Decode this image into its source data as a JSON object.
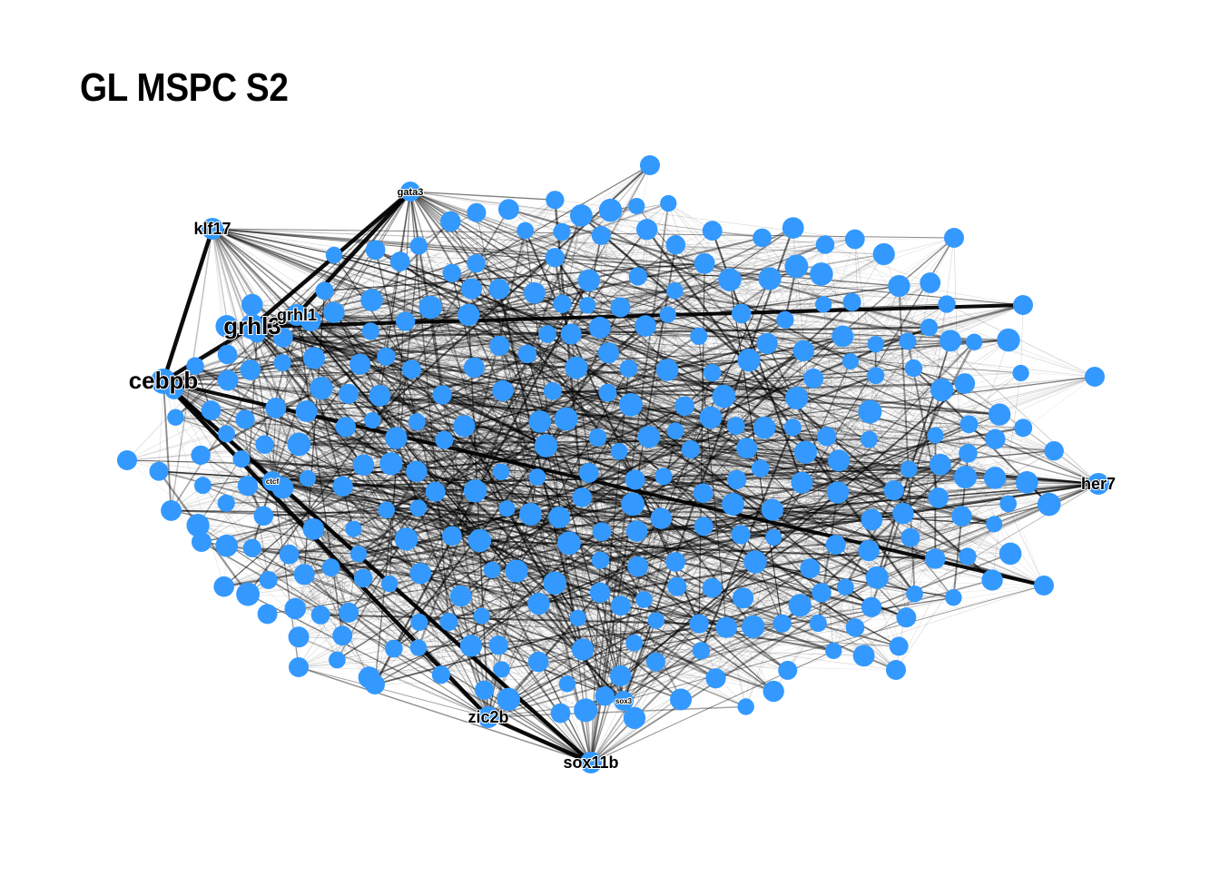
{
  "title": "GL MSPC S2",
  "colors": {
    "node": "#3399ff",
    "edge": "#000000",
    "background": "#ffffff"
  },
  "network": {
    "labeled_nodes": [
      {
        "id": "cebpb",
        "label": "cebpb",
        "size": "large"
      },
      {
        "id": "grhl3",
        "label": "grhl3",
        "size": "large"
      },
      {
        "id": "zic2b",
        "label": "zic2b",
        "size": "medium"
      },
      {
        "id": "sox11b",
        "label": "sox11b",
        "size": "medium"
      },
      {
        "id": "klf17",
        "label": "klf17",
        "size": "medium"
      },
      {
        "id": "grhl1",
        "label": "grhl1",
        "size": "medium"
      },
      {
        "id": "her7",
        "label": "her7",
        "size": "medium"
      },
      {
        "id": "gata3",
        "label": "gata3",
        "size": "small"
      },
      {
        "id": "ctcf",
        "label": "ctcf",
        "size": "tiny"
      },
      {
        "id": "sox3",
        "label": "sox3",
        "size": "tiny"
      }
    ],
    "strong_edges": [
      [
        "klf17",
        "cebpb"
      ],
      [
        "cebpb",
        "grhl3"
      ],
      [
        "grhl3",
        "gata3"
      ],
      [
        "grhl1",
        "gata3"
      ],
      [
        "cebpb",
        "sox11b"
      ],
      [
        "cebpb",
        "zic2b"
      ],
      [
        "zic2b",
        "sox11b"
      ]
    ]
  }
}
